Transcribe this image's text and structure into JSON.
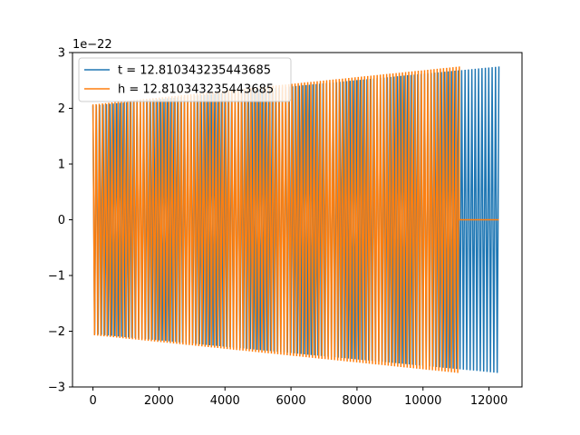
{
  "chart_data": {
    "type": "line",
    "title": "",
    "xlabel": "",
    "ylabel": "",
    "y_offset_label": "1e−22",
    "xlim": [
      -620,
      13000
    ],
    "ylim": [
      -3.0,
      3.0
    ],
    "x_ticks": [
      0,
      2000,
      4000,
      6000,
      8000,
      10000,
      12000
    ],
    "x_tick_labels": [
      "0",
      "2000",
      "4000",
      "6000",
      "8000",
      "10000",
      "12000"
    ],
    "y_ticks": [
      -3,
      -2,
      -1,
      0,
      1,
      2,
      3
    ],
    "y_tick_labels": [
      "−3",
      "−2",
      "−1",
      "0",
      "1",
      "2",
      "3"
    ],
    "grid": false,
    "legend_position": "upper-left",
    "series": [
      {
        "name": "t = 12.810343235443685",
        "color": "#1f77b4",
        "x_start": 0,
        "x_end": 12300,
        "amplitude_start": 2.05,
        "amplitude_end": 2.75,
        "cycles": 120,
        "tail_zero_after": null
      },
      {
        "name": "h = 12.810343235443685",
        "color": "#ff7f0e",
        "x_start": 0,
        "x_end": 11100,
        "amplitude_start": 2.07,
        "amplitude_end": 2.75,
        "cycles": 116,
        "tail_zero_after": 11100,
        "tail_end": 12300
      }
    ]
  }
}
